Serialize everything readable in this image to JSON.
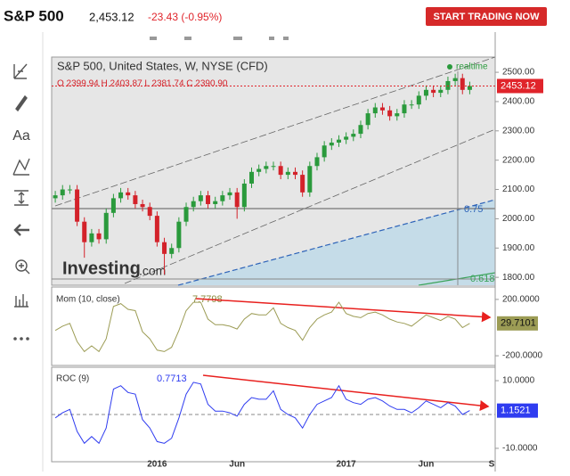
{
  "header": {
    "symbol": "S&P 500",
    "price": "2,453.12",
    "change": "-23.43 (-0.95%)",
    "button": "START TRADING NOW"
  },
  "toolbar": {
    "text_tool": "Aa"
  },
  "watermark": [
    "Investing",
    ".com"
  ],
  "chart_data": [
    {
      "type": "candlestick",
      "title": "S&P 500, United States, W, NYSE (CFD)",
      "status": "realtime",
      "ohlc_label": "O 2399.94 H 2403.87 L 2381.74 C 2390.90",
      "annotations": [
        "0.75",
        "0.618"
      ],
      "categories": [
        null,
        null,
        null,
        null,
        null,
        null,
        null,
        null,
        null,
        null,
        null,
        null,
        null,
        null,
        "2016",
        null,
        null,
        null,
        null,
        null,
        null,
        null,
        null,
        null,
        null,
        "Jun",
        null,
        null,
        null,
        null,
        null,
        null,
        null,
        null,
        null,
        null,
        null,
        null,
        null,
        null,
        "2017",
        null,
        null,
        null,
        null,
        null,
        null,
        null,
        null,
        null,
        null,
        "Jun",
        null,
        null,
        null,
        null,
        null,
        null,
        null,
        null,
        "S"
      ],
      "open": [
        2070,
        2080,
        2100,
        2100,
        1990,
        1920,
        1950,
        1930,
        2020,
        2070,
        2090,
        2080,
        2050,
        2040,
        2010,
        1920,
        1880,
        1900,
        1990,
        2040,
        2060,
        2080,
        2050,
        2060,
        2080,
        2090,
        2040,
        2120,
        2160,
        2170,
        2180,
        2180,
        2150,
        2160,
        2150,
        2090,
        2180,
        2210,
        2250,
        2260,
        2270,
        2280,
        2290,
        2320,
        2360,
        2380,
        2370,
        2350,
        2360,
        2390,
        2390,
        2420,
        2440,
        2430,
        2440,
        2470,
        2480,
        2440,
        null,
        null,
        null
      ],
      "high": [
        2095,
        2115,
        2115,
        2115,
        2005,
        1965,
        1965,
        2035,
        2085,
        2105,
        2105,
        2095,
        2065,
        2055,
        2025,
        1935,
        1915,
        2005,
        2055,
        2075,
        2095,
        2095,
        2075,
        2095,
        2105,
        2105,
        2135,
        2175,
        2185,
        2195,
        2195,
        2195,
        2175,
        2175,
        2165,
        2195,
        2225,
        2265,
        2275,
        2285,
        2295,
        2305,
        2335,
        2375,
        2395,
        2395,
        2385,
        2375,
        2405,
        2405,
        2435,
        2455,
        2455,
        2455,
        2485,
        2495,
        2495,
        2468,
        null,
        null,
        null
      ],
      "low": [
        2055,
        2065,
        2085,
        1975,
        1867,
        1905,
        1915,
        1915,
        2005,
        2055,
        2065,
        2035,
        2025,
        1995,
        1905,
        1810,
        1865,
        1885,
        1975,
        2025,
        2045,
        2035,
        2035,
        2045,
        2065,
        2000,
        2025,
        2105,
        2145,
        2155,
        2165,
        2135,
        2135,
        2135,
        2075,
        2075,
        2165,
        2195,
        2235,
        2245,
        2255,
        2265,
        2275,
        2305,
        2345,
        2355,
        2335,
        2335,
        2345,
        2375,
        2375,
        2405,
        2415,
        2415,
        2425,
        2455,
        2425,
        2425,
        null,
        null,
        null
      ],
      "close": [
        2080,
        2100,
        2100,
        1990,
        1920,
        1950,
        1930,
        2020,
        2070,
        2090,
        2080,
        2050,
        2040,
        2010,
        1920,
        1880,
        1900,
        1990,
        2040,
        2060,
        2080,
        2050,
        2060,
        2080,
        2090,
        2040,
        2120,
        2160,
        2170,
        2180,
        2180,
        2150,
        2160,
        2150,
        2090,
        2180,
        2210,
        2250,
        2260,
        2270,
        2280,
        2290,
        2320,
        2360,
        2380,
        2370,
        2350,
        2360,
        2390,
        2390,
        2420,
        2440,
        2430,
        2440,
        2470,
        2480,
        2440,
        2453.12,
        null,
        null,
        null
      ],
      "up_color": "#2a9a3c",
      "down_color": "#d3222a",
      "tag_color": "#e0242b",
      "ylim": [
        1773,
        2552
      ],
      "yticks": [
        {
          "value": 1800,
          "label": "1800.00"
        },
        {
          "value": 1900,
          "label": "1900.00"
        },
        {
          "value": 2000,
          "label": "2000.00"
        },
        {
          "value": 2100,
          "label": "2100.00"
        },
        {
          "value": 2200,
          "label": "2200.00"
        },
        {
          "value": 2300,
          "label": "2300.00"
        },
        {
          "value": 2400,
          "label": "2400.00"
        },
        {
          "value": 2500,
          "label": "2500.00"
        }
      ]
    },
    {
      "type": "line",
      "title": "Mom (10, close)",
      "readout": 7.7798,
      "color": "#9c9c55",
      "values": [
        -20,
        10,
        30,
        -100,
        -170,
        -130,
        -170,
        -80,
        150,
        170,
        130,
        120,
        -30,
        -80,
        -160,
        -170,
        -140,
        -20,
        120,
        180,
        180,
        60,
        20,
        20,
        10,
        -10,
        60,
        100,
        90,
        90,
        140,
        30,
        0,
        -20,
        -90,
        0,
        60,
        90,
        110,
        180,
        100,
        80,
        70,
        100,
        110,
        90,
        60,
        40,
        30,
        10,
        50,
        90,
        70,
        50,
        80,
        60,
        0,
        29.7101,
        null,
        null,
        null
      ],
      "ylim": [
        -269,
        269
      ],
      "yticks": [
        {
          "value": -200,
          "label": "-200.0000"
        },
        {
          "value": 200,
          "label": "200.0000"
        }
      ]
    },
    {
      "type": "line",
      "title": "ROC (9)",
      "readout": 0.7713,
      "color": "#2f3cf0",
      "values": [
        -1,
        0.5,
        1.5,
        -5,
        -8.5,
        -6.5,
        -8.5,
        -4,
        7.5,
        8.5,
        6.5,
        6,
        -1.5,
        -4,
        -8,
        -8.5,
        -7,
        -1,
        6,
        9.5,
        9,
        3,
        1,
        1,
        0.5,
        -0.5,
        3,
        5,
        4.5,
        4.5,
        7,
        1.5,
        0,
        -1,
        -4,
        0,
        3,
        4,
        5,
        8.5,
        4.5,
        3.5,
        3,
        4.5,
        5,
        4,
        2.5,
        1.5,
        1.5,
        0.5,
        2,
        4,
        3,
        2,
        3.5,
        2.5,
        0,
        1.1521,
        null,
        null,
        null
      ],
      "ylim": [
        -13.7,
        13.7
      ],
      "yticks": [
        {
          "value": -10,
          "label": "-10.0000"
        },
        {
          "value": 10,
          "label": "10.0000"
        }
      ]
    }
  ]
}
